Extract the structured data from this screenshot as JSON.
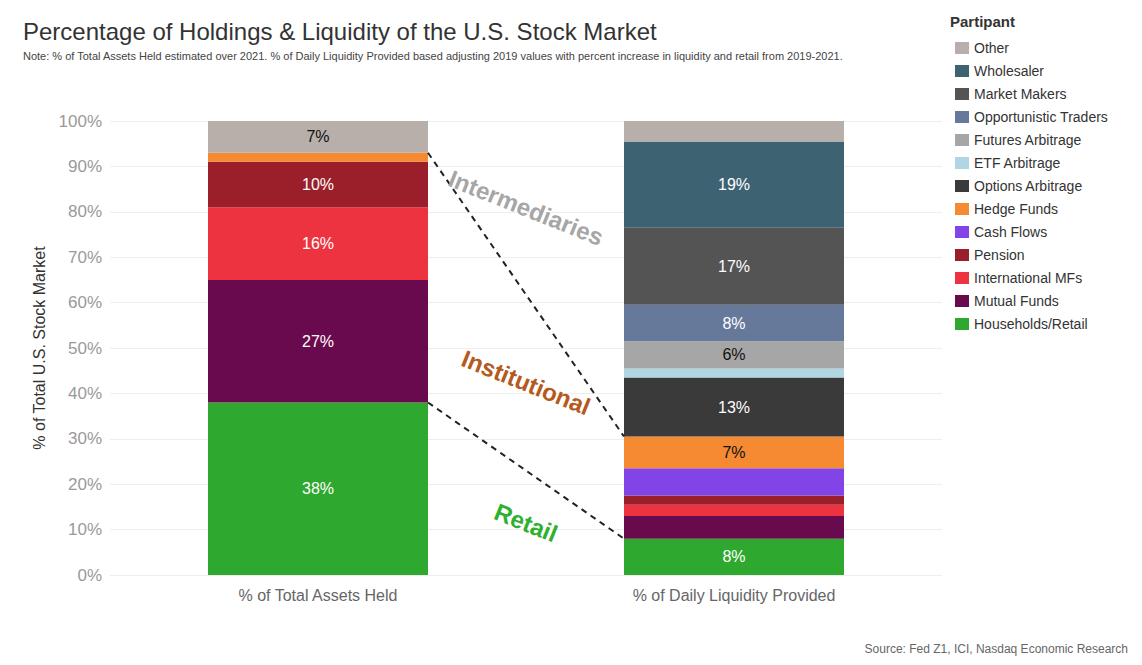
{
  "chart_data": {
    "type": "bar",
    "stacked": true,
    "title": "Percentage of Holdings & Liquidity of the U.S. Stock Market",
    "subtitle": "Note: % of Total Assets Held estimated over 2021. % of Daily Liquidity Provided based adjusting 2019 values with percent increase in liquidity and retail from 2019-2021.",
    "source": "Source: Fed Z1, ICI, Nasdaq Economic Research",
    "y_label": "% of Total U.S. Stock Market",
    "legend_title": "Partipant",
    "legend": "right",
    "grid": true,
    "data_labels": true,
    "categories": [
      "% of Total Assets Held",
      "% of Daily Liquidity Provided"
    ],
    "ylim": [
      0,
      100
    ],
    "yticks": [
      {
        "value": 0,
        "label": "0%"
      },
      {
        "value": 10,
        "label": "10%"
      },
      {
        "value": 20,
        "label": "20%"
      },
      {
        "value": 30,
        "label": "30%"
      },
      {
        "value": 40,
        "label": "40%"
      },
      {
        "value": 50,
        "label": "50%"
      },
      {
        "value": 60,
        "label": "60%"
      },
      {
        "value": 70,
        "label": "70%"
      },
      {
        "value": 80,
        "label": "80%"
      },
      {
        "value": 90,
        "label": "90%"
      },
      {
        "value": 100,
        "label": "100%"
      }
    ],
    "series": [
      {
        "name": "Households/Retail",
        "color": "#2ea82e",
        "values": [
          38,
          8
        ],
        "value_labels": [
          "38%",
          "8%"
        ]
      },
      {
        "name": "Mutual Funds",
        "color": "#6a0a4e",
        "values": [
          27,
          5
        ],
        "value_labels": [
          "27%",
          null
        ]
      },
      {
        "name": "International MFs",
        "color": "#ee3340",
        "values": [
          16,
          2.5
        ],
        "value_labels": [
          "16%",
          null
        ]
      },
      {
        "name": "Pension",
        "color": "#9a1f2b",
        "values": [
          10,
          2
        ],
        "value_labels": [
          "10%",
          null
        ]
      },
      {
        "name": "Cash Flows",
        "color": "#8244e6",
        "values": [
          0,
          6
        ],
        "value_labels": [
          null,
          null
        ]
      },
      {
        "name": "Hedge Funds",
        "color": "#f58a33",
        "values": [
          2,
          7
        ],
        "value_labels": [
          null,
          "7%"
        ]
      },
      {
        "name": "Options Arbitrage",
        "color": "#3a3a3a",
        "values": [
          0,
          13
        ],
        "value_labels": [
          null,
          "13%"
        ]
      },
      {
        "name": "ETF Arbitrage",
        "color": "#afd6e2",
        "values": [
          0,
          2
        ],
        "value_labels": [
          null,
          null
        ]
      },
      {
        "name": "Futures Arbitrage",
        "color": "#a6a6a6",
        "values": [
          0,
          6
        ],
        "value_labels": [
          null,
          "6%"
        ]
      },
      {
        "name": "Opportunistic Traders",
        "color": "#66799b",
        "values": [
          0,
          8
        ],
        "value_labels": [
          null,
          "8%"
        ]
      },
      {
        "name": "Market Makers",
        "color": "#545454",
        "values": [
          0,
          17
        ],
        "value_labels": [
          null,
          "17%"
        ]
      },
      {
        "name": "Wholesaler",
        "color": "#3d6373",
        "values": [
          0,
          19
        ],
        "value_labels": [
          null,
          "19%"
        ]
      },
      {
        "name": "Other",
        "color": "#b8afaa",
        "values": [
          7,
          4.5
        ],
        "value_labels": [
          "7%",
          null
        ]
      }
    ],
    "groups": [
      {
        "name": "Retail",
        "color": "#2fb02f",
        "series": [
          "Households/Retail"
        ]
      },
      {
        "name": "Institutional",
        "color": "#b5591c",
        "series": [
          "Mutual Funds",
          "International MFs",
          "Pension",
          "Cash Flows",
          "Hedge Funds"
        ]
      },
      {
        "name": "Intermediaries",
        "color": "#a6a6a6",
        "series": [
          "Options Arbitrage",
          "ETF Arbitrage",
          "Futures Arbitrage",
          "Opportunistic Traders",
          "Market Makers",
          "Wholesaler",
          "Other"
        ]
      }
    ]
  }
}
